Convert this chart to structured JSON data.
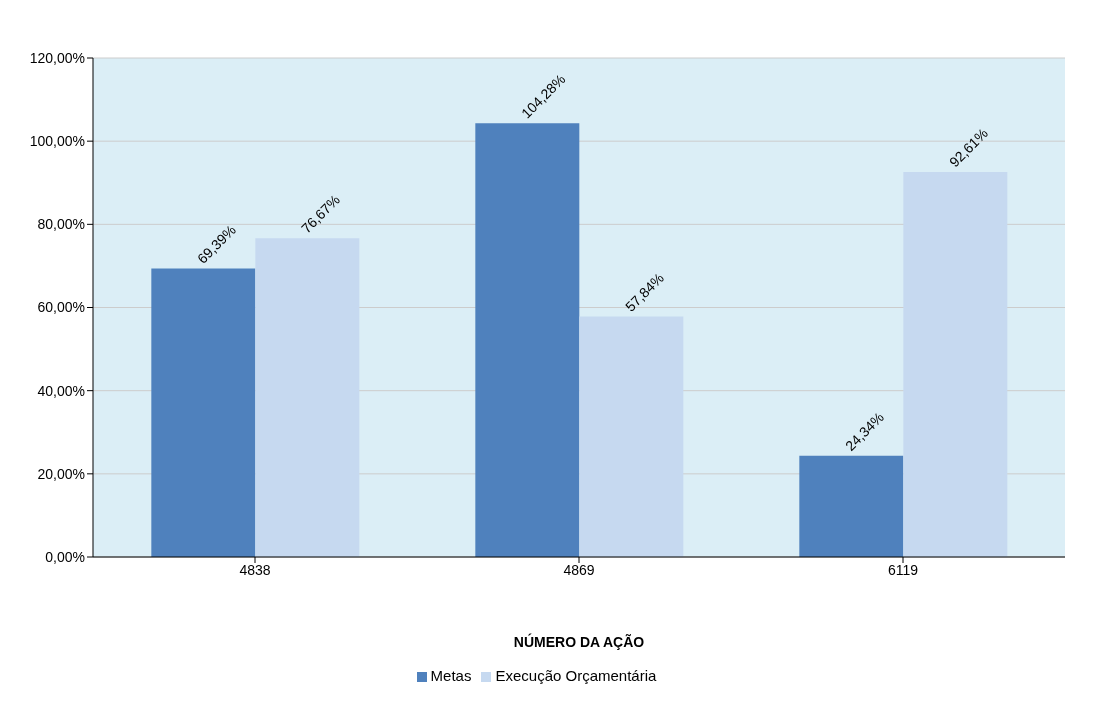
{
  "chart_data": {
    "type": "bar",
    "xlabel": "NÚMERO DA AÇÃO",
    "categories": [
      "4838",
      "4869",
      "6119"
    ],
    "series": [
      {
        "name": "Metas",
        "color": "#4f81bd",
        "values": [
          69.39,
          104.28,
          24.34
        ],
        "value_labels": [
          "69,39%",
          "104,28%",
          "24,34%"
        ]
      },
      {
        "name": "Execução Orçamentária",
        "color": "#c6d9f0",
        "values": [
          76.67,
          57.84,
          92.61
        ],
        "value_labels": [
          "76,67%",
          "57,84%",
          "92,61%"
        ]
      }
    ],
    "ylim": [
      0,
      120
    ],
    "yticks": [
      {
        "value": 0,
        "label": "0,00%"
      },
      {
        "value": 20,
        "label": "20,00%"
      },
      {
        "value": 40,
        "label": "40,00%"
      },
      {
        "value": 60,
        "label": "60,00%"
      },
      {
        "value": 80,
        "label": "80,00%"
      },
      {
        "value": 100,
        "label": "100,00%"
      },
      {
        "value": 120,
        "label": "120,00%"
      }
    ],
    "grid": "y",
    "legend": "bottom"
  }
}
